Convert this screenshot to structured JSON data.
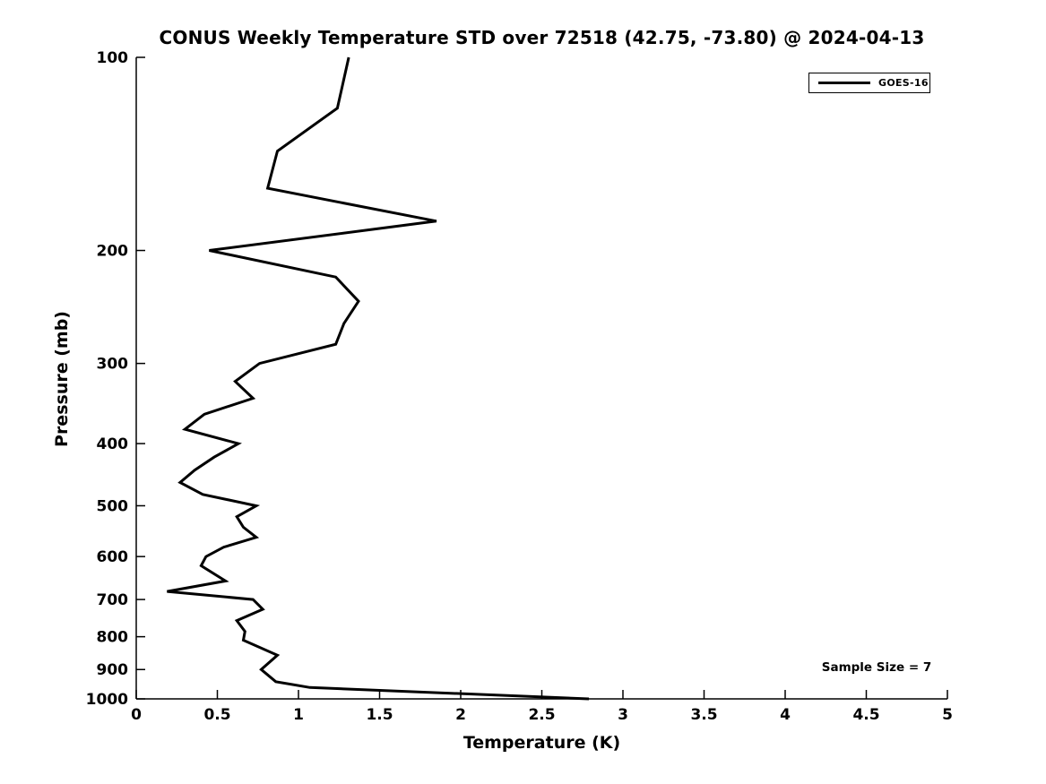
{
  "figure": {
    "background_color": "#ffffff",
    "foreground_color": "#000000"
  },
  "chart_data": {
    "type": "line",
    "title": "CONUS Weekly Temperature STD over 72518 (42.75, -73.80) @ 2024-04-13",
    "xlabel": "Temperature (K)",
    "ylabel": "Pressure (mb)",
    "xlim": [
      0,
      5
    ],
    "ylim": [
      100,
      1000
    ],
    "x_scale": "linear",
    "y_scale": "log",
    "y_direction": "inverted-pressure-increases-downward",
    "grid": false,
    "box": "off",
    "tick_direction": "in",
    "x_ticks": {
      "values": [
        0,
        0.5,
        1,
        1.5,
        2,
        2.5,
        3,
        3.5,
        4,
        4.5,
        5
      ],
      "labels": [
        "0",
        "0.5",
        "1",
        "1.5",
        "2",
        "2.5",
        "3",
        "3.5",
        "4",
        "4.5",
        "5"
      ]
    },
    "y_ticks": {
      "values": [
        100,
        200,
        300,
        400,
        500,
        600,
        700,
        800,
        900,
        1000
      ],
      "labels": [
        "100",
        "200",
        "300",
        "400",
        "500",
        "600",
        "700",
        "800",
        "900",
        "1000"
      ]
    },
    "legend": {
      "position": "top-right",
      "border": "#000000",
      "entries": [
        {
          "label": "GOES-16",
          "color": "#000000",
          "line_width": 3
        }
      ]
    },
    "series": [
      {
        "name": "GOES-16",
        "color": "#000000",
        "line_width": 3,
        "pressure_mb": [
          100,
          120,
          140,
          160,
          180,
          200,
          220,
          240,
          260,
          280,
          300,
          320,
          340,
          360,
          380,
          400,
          420,
          440,
          460,
          480,
          500,
          520,
          540,
          560,
          580,
          600,
          620,
          655,
          680,
          700,
          725,
          755,
          785,
          810,
          855,
          900,
          940,
          960,
          1000
        ],
        "std_k": [
          1.31,
          1.24,
          0.87,
          0.81,
          1.85,
          0.45,
          1.23,
          1.37,
          1.28,
          1.23,
          0.76,
          0.61,
          0.72,
          0.42,
          0.3,
          0.63,
          0.48,
          0.36,
          0.27,
          0.41,
          0.74,
          0.62,
          0.66,
          0.74,
          0.54,
          0.43,
          0.4,
          0.55,
          0.19,
          0.72,
          0.78,
          0.62,
          0.67,
          0.66,
          0.87,
          0.77,
          0.86,
          1.07,
          2.79
        ]
      }
    ],
    "annotations": [
      {
        "text": "Sample Size = 7",
        "position": "right-bottom-inside"
      }
    ]
  }
}
